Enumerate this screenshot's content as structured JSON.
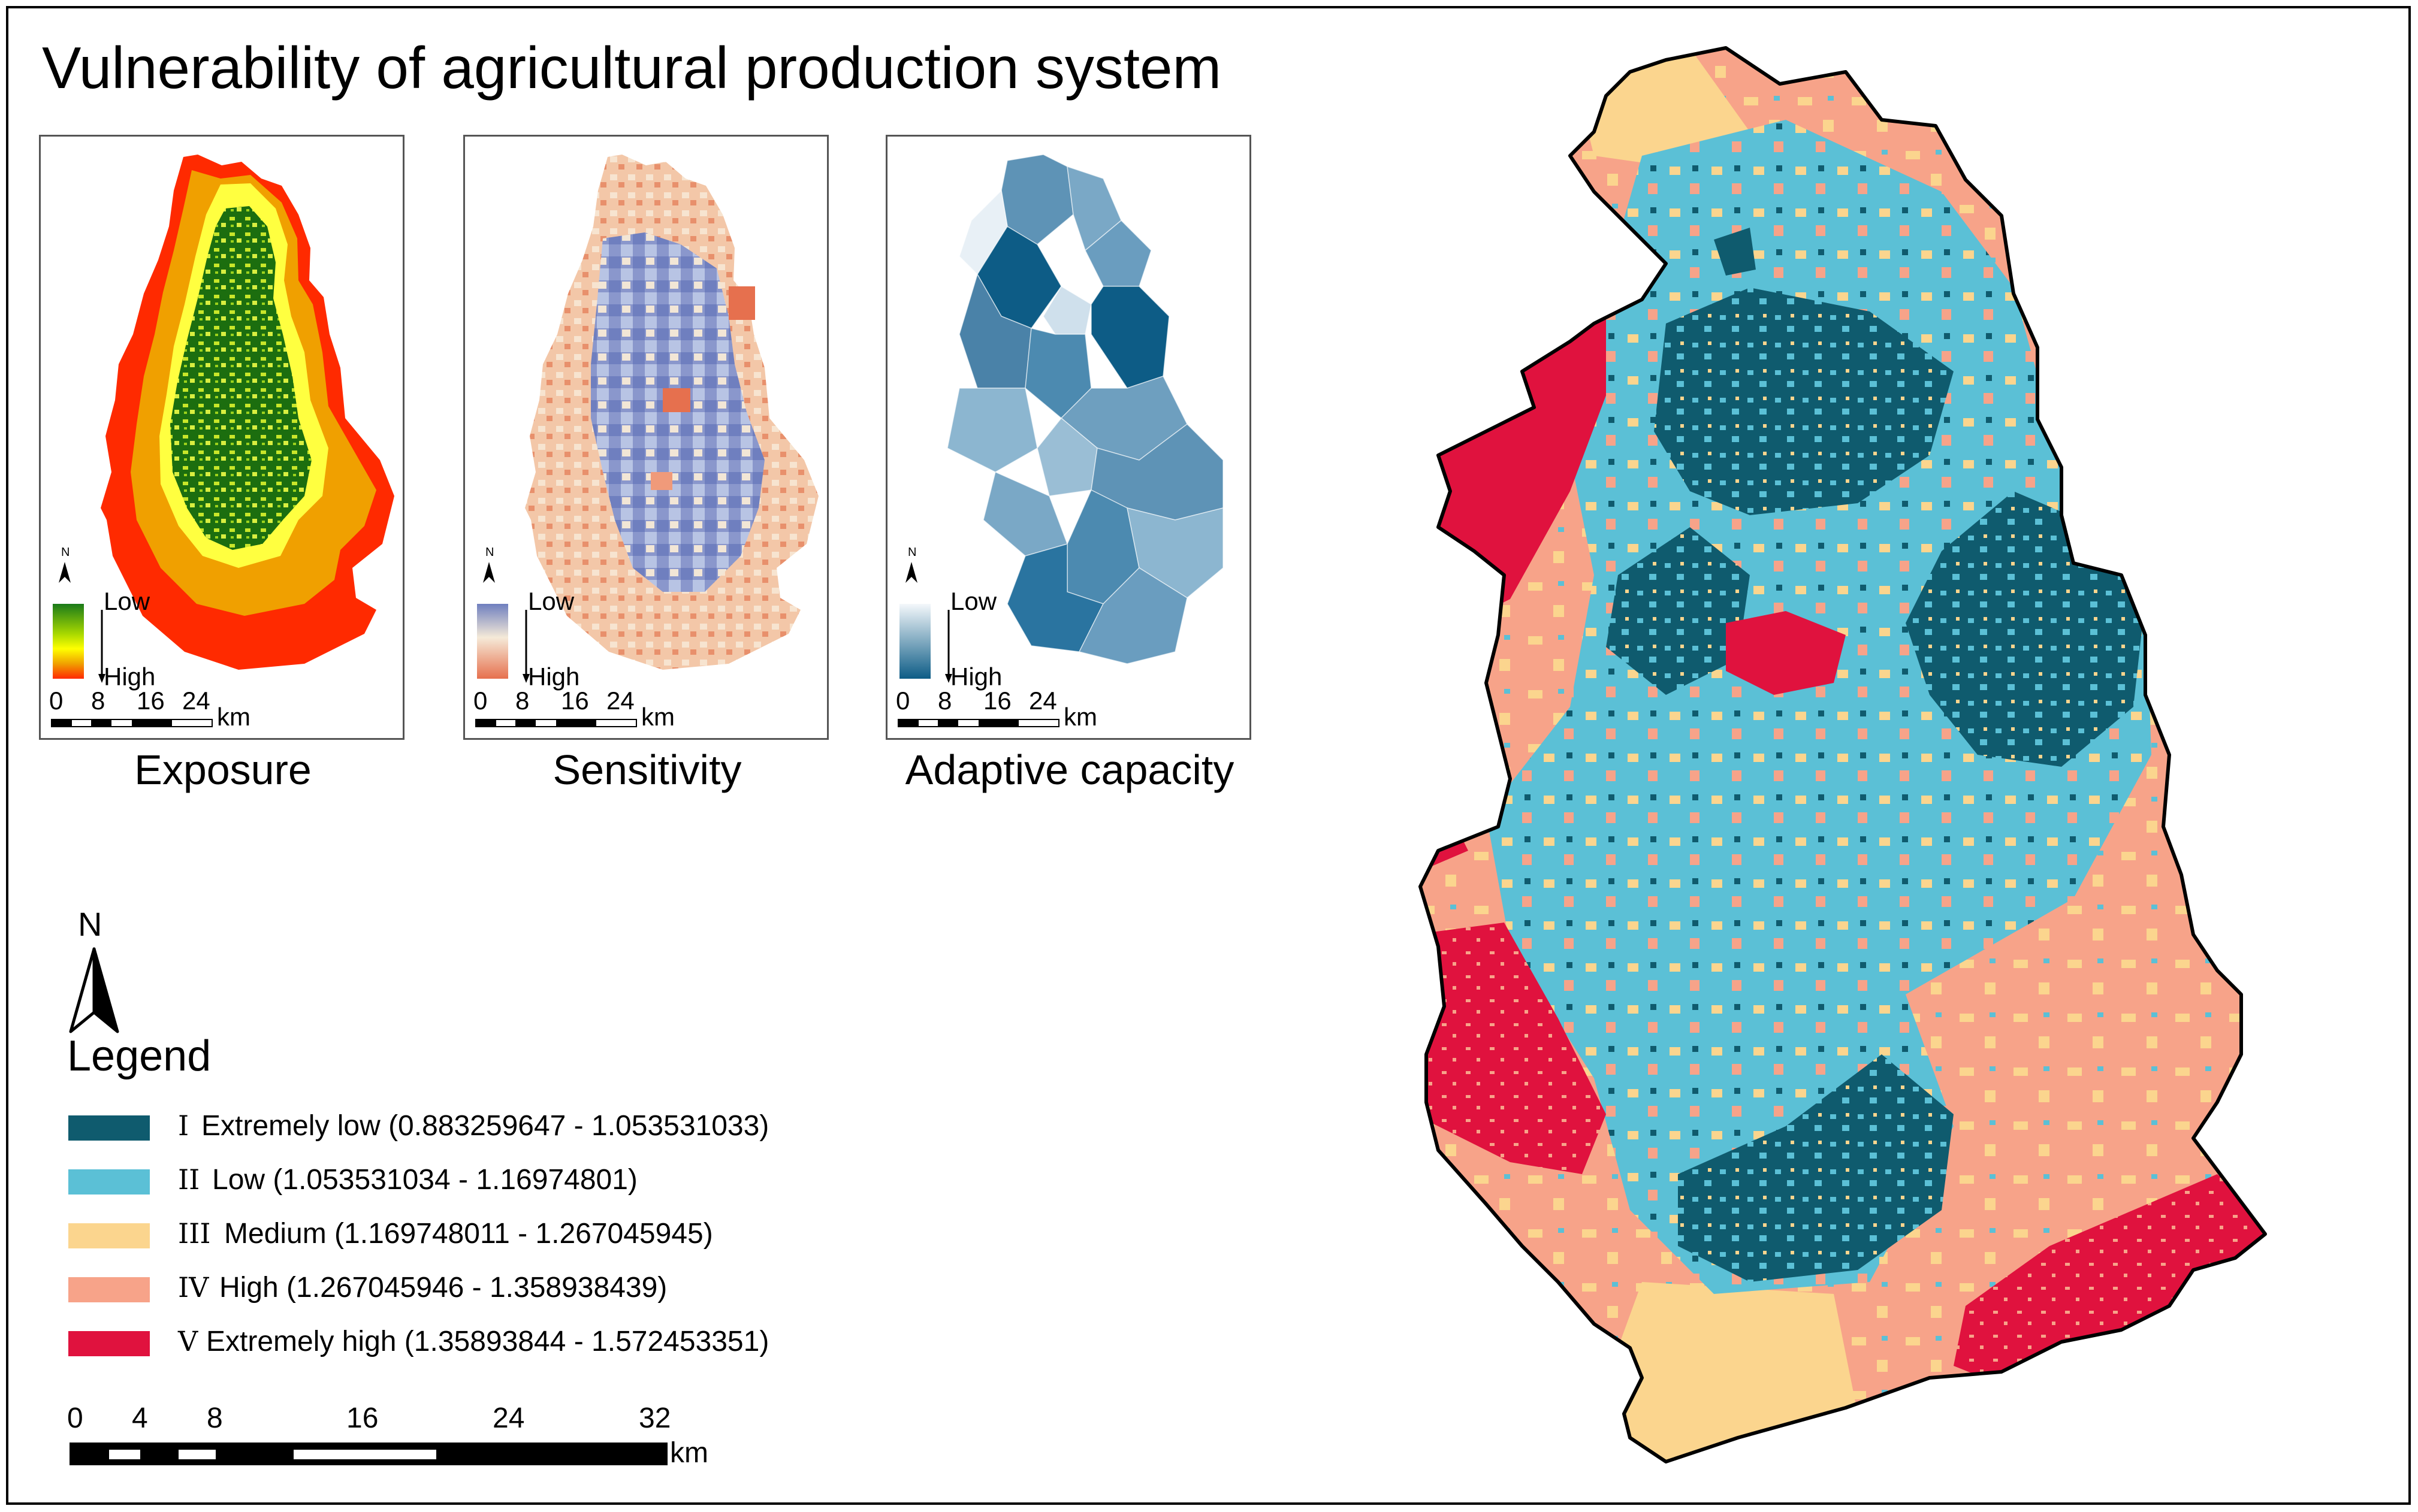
{
  "title": "Vulnerability of agricultural production system",
  "panels": [
    {
      "label": "Exposure",
      "legend_low": "Low",
      "legend_high": "High",
      "ramp": [
        "#1a7a1a",
        "#a8d800",
        "#ffff00",
        "#f0a000",
        "#ff2a00"
      ],
      "north": "N",
      "scalebar_ticks": [
        "0",
        "8",
        "16",
        "24"
      ],
      "scalebar_unit": "km"
    },
    {
      "label": "Sensitivity",
      "legend_low": "Low",
      "legend_high": "High",
      "ramp": [
        "#6f7fbf",
        "#b8c4e4",
        "#f5ead8",
        "#f6c0a0",
        "#e6704e"
      ],
      "north": "N",
      "scalebar_ticks": [
        "0",
        "8",
        "16",
        "24"
      ],
      "scalebar_unit": "km"
    },
    {
      "label": "Adaptive capacity",
      "legend_low": "Low",
      "legend_high": "High",
      "ramp": [
        "#f4f8fb",
        "#c8dcea",
        "#8cb6d0",
        "#4c8ab0",
        "#0d5c86"
      ],
      "north": "N",
      "scalebar_ticks": [
        "0",
        "8",
        "16",
        "24"
      ],
      "scalebar_unit": "km"
    }
  ],
  "north_label": "N",
  "legend": {
    "title": "Legend",
    "classes": [
      {
        "roman": "I",
        "text": "Extremely low (0.883259647 - 1.053531033)",
        "color": "#0f5b6e"
      },
      {
        "roman": "II",
        "text": "Low (1.053531034 - 1.16974801)",
        "color": "#5bc0d6"
      },
      {
        "roman": "III",
        "text": "Medium (1.169748011 - 1.267045945)",
        "color": "#fbd58e"
      },
      {
        "roman": "IV",
        "text": "High (1.267045946 - 1.358938439)",
        "color": "#f7a389"
      },
      {
        "roman": "V",
        "text": "Extremely high (1.35893844 - 1.572453351)",
        "color": "#e0123e"
      }
    ]
  },
  "scalebar": {
    "ticks": [
      "0",
      "4",
      "8",
      "16",
      "24",
      "32"
    ],
    "unit": "km"
  }
}
